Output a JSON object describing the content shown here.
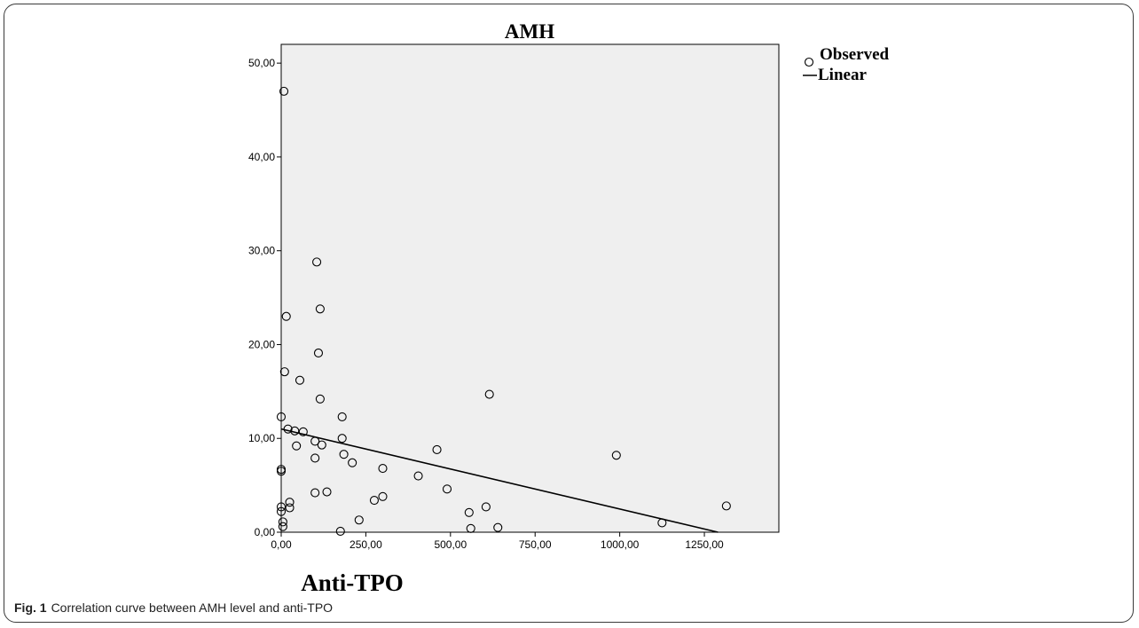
{
  "chart_data": {
    "type": "scatter",
    "title": "AMH",
    "xlabel": "Anti-TPO",
    "ylabel": "",
    "xlim": [
      0,
      1470
    ],
    "ylim": [
      0,
      52
    ],
    "x_ticks": [
      0,
      250,
      500,
      750,
      1000,
      1250
    ],
    "x_tick_labels": [
      "0,00",
      "250,00",
      "500,00",
      "750,00",
      "1000,00",
      "1250,00"
    ],
    "y_ticks": [
      0,
      10,
      20,
      30,
      40,
      50
    ],
    "y_tick_labels": [
      "0,00",
      "10,00",
      "20,00",
      "30,00",
      "40,00",
      "50,00"
    ],
    "grid": false,
    "legend_position": "top-right",
    "legend": [
      {
        "label": "Observed",
        "symbol": "open-circle"
      },
      {
        "label": "Linear",
        "symbol": "line"
      }
    ],
    "series": [
      {
        "name": "Observed",
        "marker": "open-circle",
        "points": [
          [
            8,
            47.0
          ],
          [
            0,
            12.3
          ],
          [
            0,
            6.7
          ],
          [
            0,
            6.5
          ],
          [
            0,
            2.7
          ],
          [
            0,
            2.2
          ],
          [
            5,
            1.1
          ],
          [
            5,
            0.6
          ],
          [
            10,
            17.1
          ],
          [
            15,
            23.0
          ],
          [
            20,
            11.0
          ],
          [
            25,
            3.2
          ],
          [
            25,
            2.6
          ],
          [
            40,
            10.8
          ],
          [
            45,
            9.2
          ],
          [
            55,
            16.2
          ],
          [
            65,
            10.7
          ],
          [
            100,
            9.7
          ],
          [
            100,
            7.9
          ],
          [
            100,
            4.2
          ],
          [
            105,
            28.8
          ],
          [
            110,
            19.1
          ],
          [
            115,
            14.2
          ],
          [
            115,
            23.8
          ],
          [
            120,
            9.3
          ],
          [
            135,
            4.3
          ],
          [
            180,
            12.3
          ],
          [
            180,
            10.0
          ],
          [
            185,
            8.3
          ],
          [
            175,
            0.1
          ],
          [
            210,
            7.4
          ],
          [
            230,
            1.3
          ],
          [
            275,
            3.4
          ],
          [
            300,
            6.8
          ],
          [
            300,
            3.8
          ],
          [
            405,
            6.0
          ],
          [
            460,
            8.8
          ],
          [
            490,
            4.6
          ],
          [
            555,
            2.1
          ],
          [
            560,
            0.4
          ],
          [
            605,
            2.7
          ],
          [
            615,
            14.7
          ],
          [
            640,
            0.5
          ],
          [
            990,
            8.2
          ],
          [
            1125,
            1.0
          ],
          [
            1315,
            2.8
          ]
        ]
      },
      {
        "name": "Linear",
        "type": "line",
        "points": [
          [
            0,
            11.0
          ],
          [
            1290,
            0.0
          ]
        ]
      }
    ],
    "colors": {
      "plot_background": "#efefef",
      "marker_stroke": "#000000",
      "line": "#000000"
    }
  },
  "caption": {
    "label": "Fig. 1",
    "text": "Correlation curve between AMH level and anti-TPO"
  }
}
